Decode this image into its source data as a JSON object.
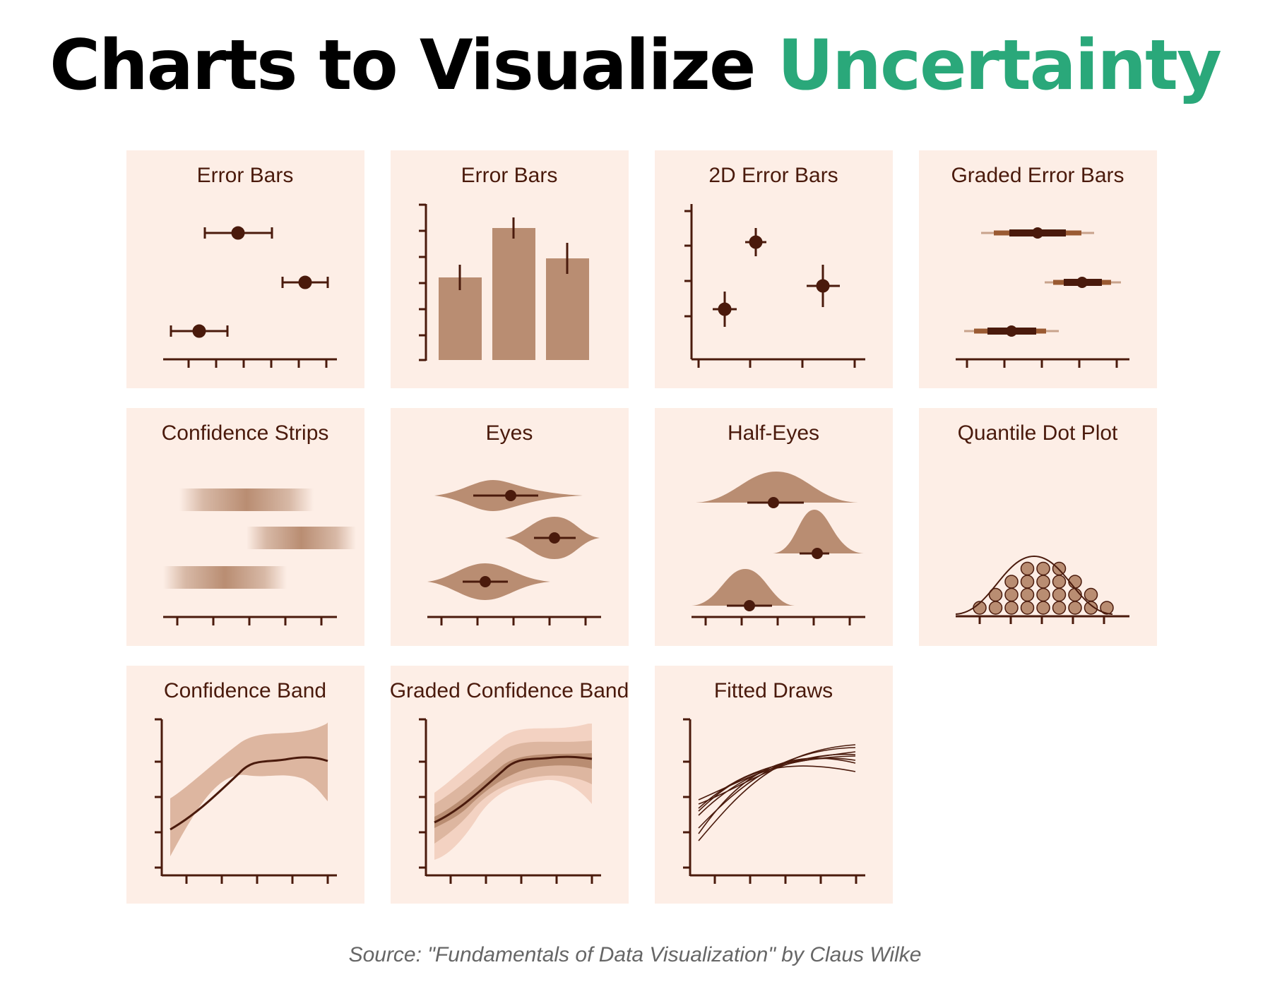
{
  "title": {
    "main": "Charts to Visualize",
    "accent": "Uncertainty"
  },
  "colors": {
    "title": "#000000",
    "accent": "#2aa87a",
    "panel_bg": "#fdeee6",
    "ink": "#4a1a0c",
    "fill": "#b98d72",
    "fill_light": "#ddb6a0",
    "source": "#666666"
  },
  "panels": [
    {
      "title": "Error Bars"
    },
    {
      "title": "Error Bars"
    },
    {
      "title": "2D Error Bars"
    },
    {
      "title": "Graded Error Bars"
    },
    {
      "title": "Confidence Strips"
    },
    {
      "title": "Eyes"
    },
    {
      "title": "Half-Eyes"
    },
    {
      "title": "Quantile Dot Plot"
    },
    {
      "title": "Confidence Band"
    },
    {
      "title": "Graded Confidence Band"
    },
    {
      "title": "Fitted Draws"
    }
  ],
  "source": "Source: \"Fundamentals of Data Visualization\" by Claus Wilke"
}
